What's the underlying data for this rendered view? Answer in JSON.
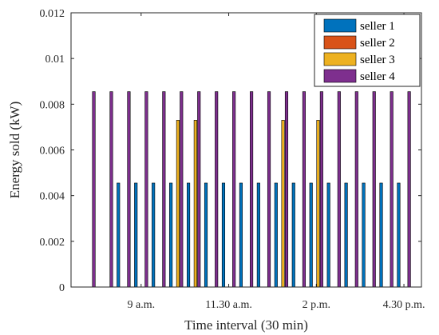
{
  "chart_data": {
    "type": "bar",
    "title": "",
    "xlabel": "Time interval (30 min)",
    "ylabel": "Energy sold (kW)",
    "ylim": [
      0,
      0.012
    ],
    "xlim": [
      0,
      20
    ],
    "yticks": [
      {
        "value": 0,
        "label": "0"
      },
      {
        "value": 0.002,
        "label": "0.002"
      },
      {
        "value": 0.004,
        "label": "0.004"
      },
      {
        "value": 0.006,
        "label": "0.006"
      },
      {
        "value": 0.008,
        "label": "0.008"
      },
      {
        "value": 0.01,
        "label": "0.01"
      },
      {
        "value": 0.012,
        "label": "0.012"
      }
    ],
    "xticks": [
      {
        "value": 4,
        "label": "9 a.m."
      },
      {
        "value": 9,
        "label": "11.30 a.m."
      },
      {
        "value": 14,
        "label": "2 p.m."
      },
      {
        "value": 19,
        "label": "4.30 p.m."
      }
    ],
    "x": [
      1,
      2,
      3,
      4,
      5,
      6,
      7,
      8,
      9,
      10,
      11,
      12,
      13,
      14,
      15,
      16,
      17,
      18,
      19
    ],
    "grid": false,
    "legend_position": "top-right",
    "series": [
      {
        "name": "seller 1",
        "color": "#0072BD",
        "values": [
          0,
          0,
          0.00455,
          0.00455,
          0.00455,
          0.00455,
          0.00455,
          0.00455,
          0.00455,
          0.00455,
          0.00455,
          0.00455,
          0.00455,
          0.00455,
          0.00455,
          0.00455,
          0.00455,
          0.00455,
          0.00455
        ]
      },
      {
        "name": "seller 2",
        "color": "#D95319",
        "values": [
          0,
          0,
          0,
          0,
          0,
          0,
          0,
          0,
          0,
          0,
          0,
          0,
          0,
          0,
          0,
          0,
          0,
          0,
          0
        ]
      },
      {
        "name": "seller 3",
        "color": "#EDB120",
        "values": [
          0,
          0,
          0,
          0,
          0,
          0.0073,
          0.0073,
          0,
          0,
          0,
          0,
          0.0073,
          0,
          0.0073,
          0,
          0,
          0,
          0,
          0
        ]
      },
      {
        "name": "seller 4",
        "color": "#7E2F8E",
        "values": [
          0.00855,
          0.00855,
          0.00855,
          0.00855,
          0.00855,
          0.00855,
          0.00855,
          0.00855,
          0.00855,
          0.00855,
          0.00855,
          0.00855,
          0.00855,
          0.00855,
          0.00855,
          0.00855,
          0.00855,
          0.00855,
          0.00855
        ]
      }
    ]
  }
}
